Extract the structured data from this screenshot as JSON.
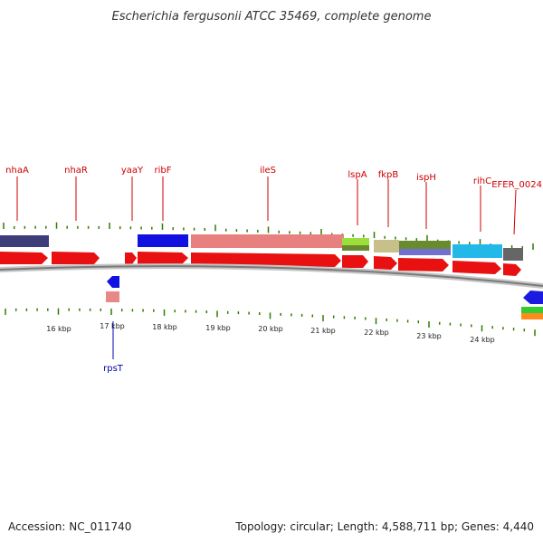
{
  "title": "Escherichia fergusonii ATCC 35469, complete genome",
  "footer": {
    "accession": "Accession: NC_011740",
    "summary": "Topology: circular; Length: 4,588,711 bp; Genes: 4,440"
  },
  "colors": {
    "forward_label": "#cc0000",
    "reverse_label": "#0000aa",
    "tick": "#2e7d00",
    "backbone": "#8a8a8a"
  },
  "kbp_labels": [
    "16 kbp",
    "17 kbp",
    "18 kbp",
    "19 kbp",
    "20 kbp",
    "21 kbp",
    "22 kbp",
    "23 kbp",
    "24 kbp"
  ],
  "forward_genes": [
    "nhaA",
    "nhaR",
    "yaaY",
    "ribF",
    "ileS",
    "lspA",
    "fkpB",
    "ispH",
    "rihC",
    "EFER_0024"
  ],
  "reverse_genes": [
    "rpsT"
  ],
  "feature_colors": {
    "gene_arrow": "#e81010",
    "rpsT_cds": "#e88888",
    "rpsT_arrow": "#1010e0",
    "nhaA_cds": "#3d3d7a",
    "ribF_cds": "#1212e0",
    "ileS_cds": "#e88080",
    "lspA_cds": "#9adf3a",
    "fkpB_cds": "#c8c08a",
    "ispH_cds": "#6a8a30",
    "ispH_lower": "#7070d0",
    "rihC_cds": "#22b8e8",
    "EFER_0024_cds": "#666666",
    "right_arrow": "#1a1ae0",
    "right_feature_a": "#33cc33",
    "right_feature_b": "#ff8c1a"
  }
}
